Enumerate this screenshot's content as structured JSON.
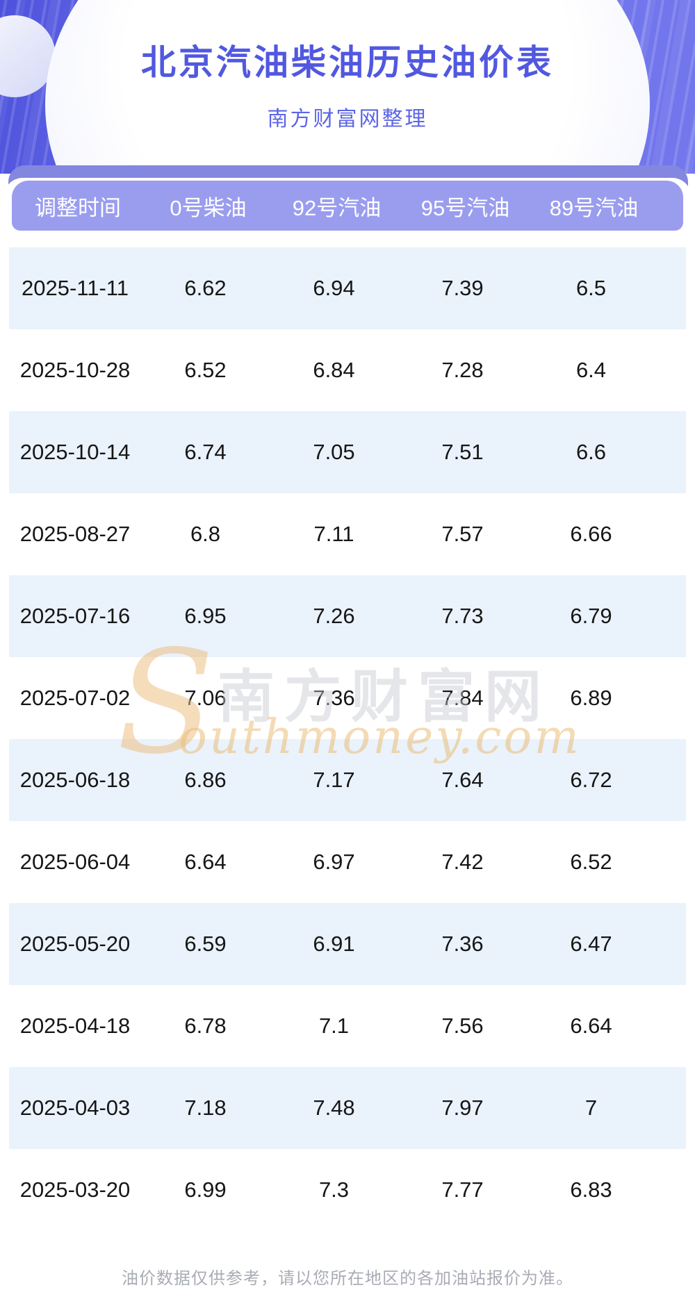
{
  "hero": {
    "title": "北京汽油柴油历史油价表",
    "subtitle": "南方财富网整理"
  },
  "chart_data": {
    "type": "table",
    "title": "北京汽油柴油历史油价表",
    "subtitle": "南方财富网整理",
    "columns": [
      "调整时间",
      "0号柴油",
      "92号汽油",
      "95号汽油",
      "89号汽油"
    ],
    "rows": [
      [
        "2025-11-11",
        "6.62",
        "6.94",
        "7.39",
        "6.5"
      ],
      [
        "2025-10-28",
        "6.52",
        "6.84",
        "7.28",
        "6.4"
      ],
      [
        "2025-10-14",
        "6.74",
        "7.05",
        "7.51",
        "6.6"
      ],
      [
        "2025-08-27",
        "6.8",
        "7.11",
        "7.57",
        "6.66"
      ],
      [
        "2025-07-16",
        "6.95",
        "7.26",
        "7.73",
        "6.79"
      ],
      [
        "2025-07-02",
        "7.06",
        "7.36",
        "7.84",
        "6.89"
      ],
      [
        "2025-06-18",
        "6.86",
        "7.17",
        "7.64",
        "6.72"
      ],
      [
        "2025-06-04",
        "6.64",
        "6.97",
        "7.42",
        "6.52"
      ],
      [
        "2025-05-20",
        "6.59",
        "6.91",
        "7.36",
        "6.47"
      ],
      [
        "2025-04-18",
        "6.78",
        "7.1",
        "7.56",
        "6.64"
      ],
      [
        "2025-04-03",
        "7.18",
        "7.48",
        "7.97",
        "7"
      ],
      [
        "2025-03-20",
        "6.99",
        "7.3",
        "7.77",
        "6.83"
      ]
    ],
    "layout_hints": {
      "row_striping": true,
      "stripe_color": "#eaf2fb",
      "header_color": "#9a9dee"
    }
  },
  "watermark": {
    "initial": "S",
    "site_name": "南方财富网",
    "domain_text": "outhmoney.com"
  },
  "footer": {
    "disclaimer": "油价数据仅供参考，请以您所在地区的各加油站报价为准。"
  },
  "colors": {
    "hero_purple": "#6a6ee9",
    "title_blue": "#5158df",
    "subtitle_blue": "#5c66e6",
    "back_bar": "#8487df",
    "header_bar": "#9a9dee",
    "row_alt_blue": "#eaf2fb",
    "cell_text": "#161616",
    "footer_gray": "#a9acb4",
    "watermark_gold": "#eabf77",
    "watermark_gray": "#c7c8d2"
  }
}
